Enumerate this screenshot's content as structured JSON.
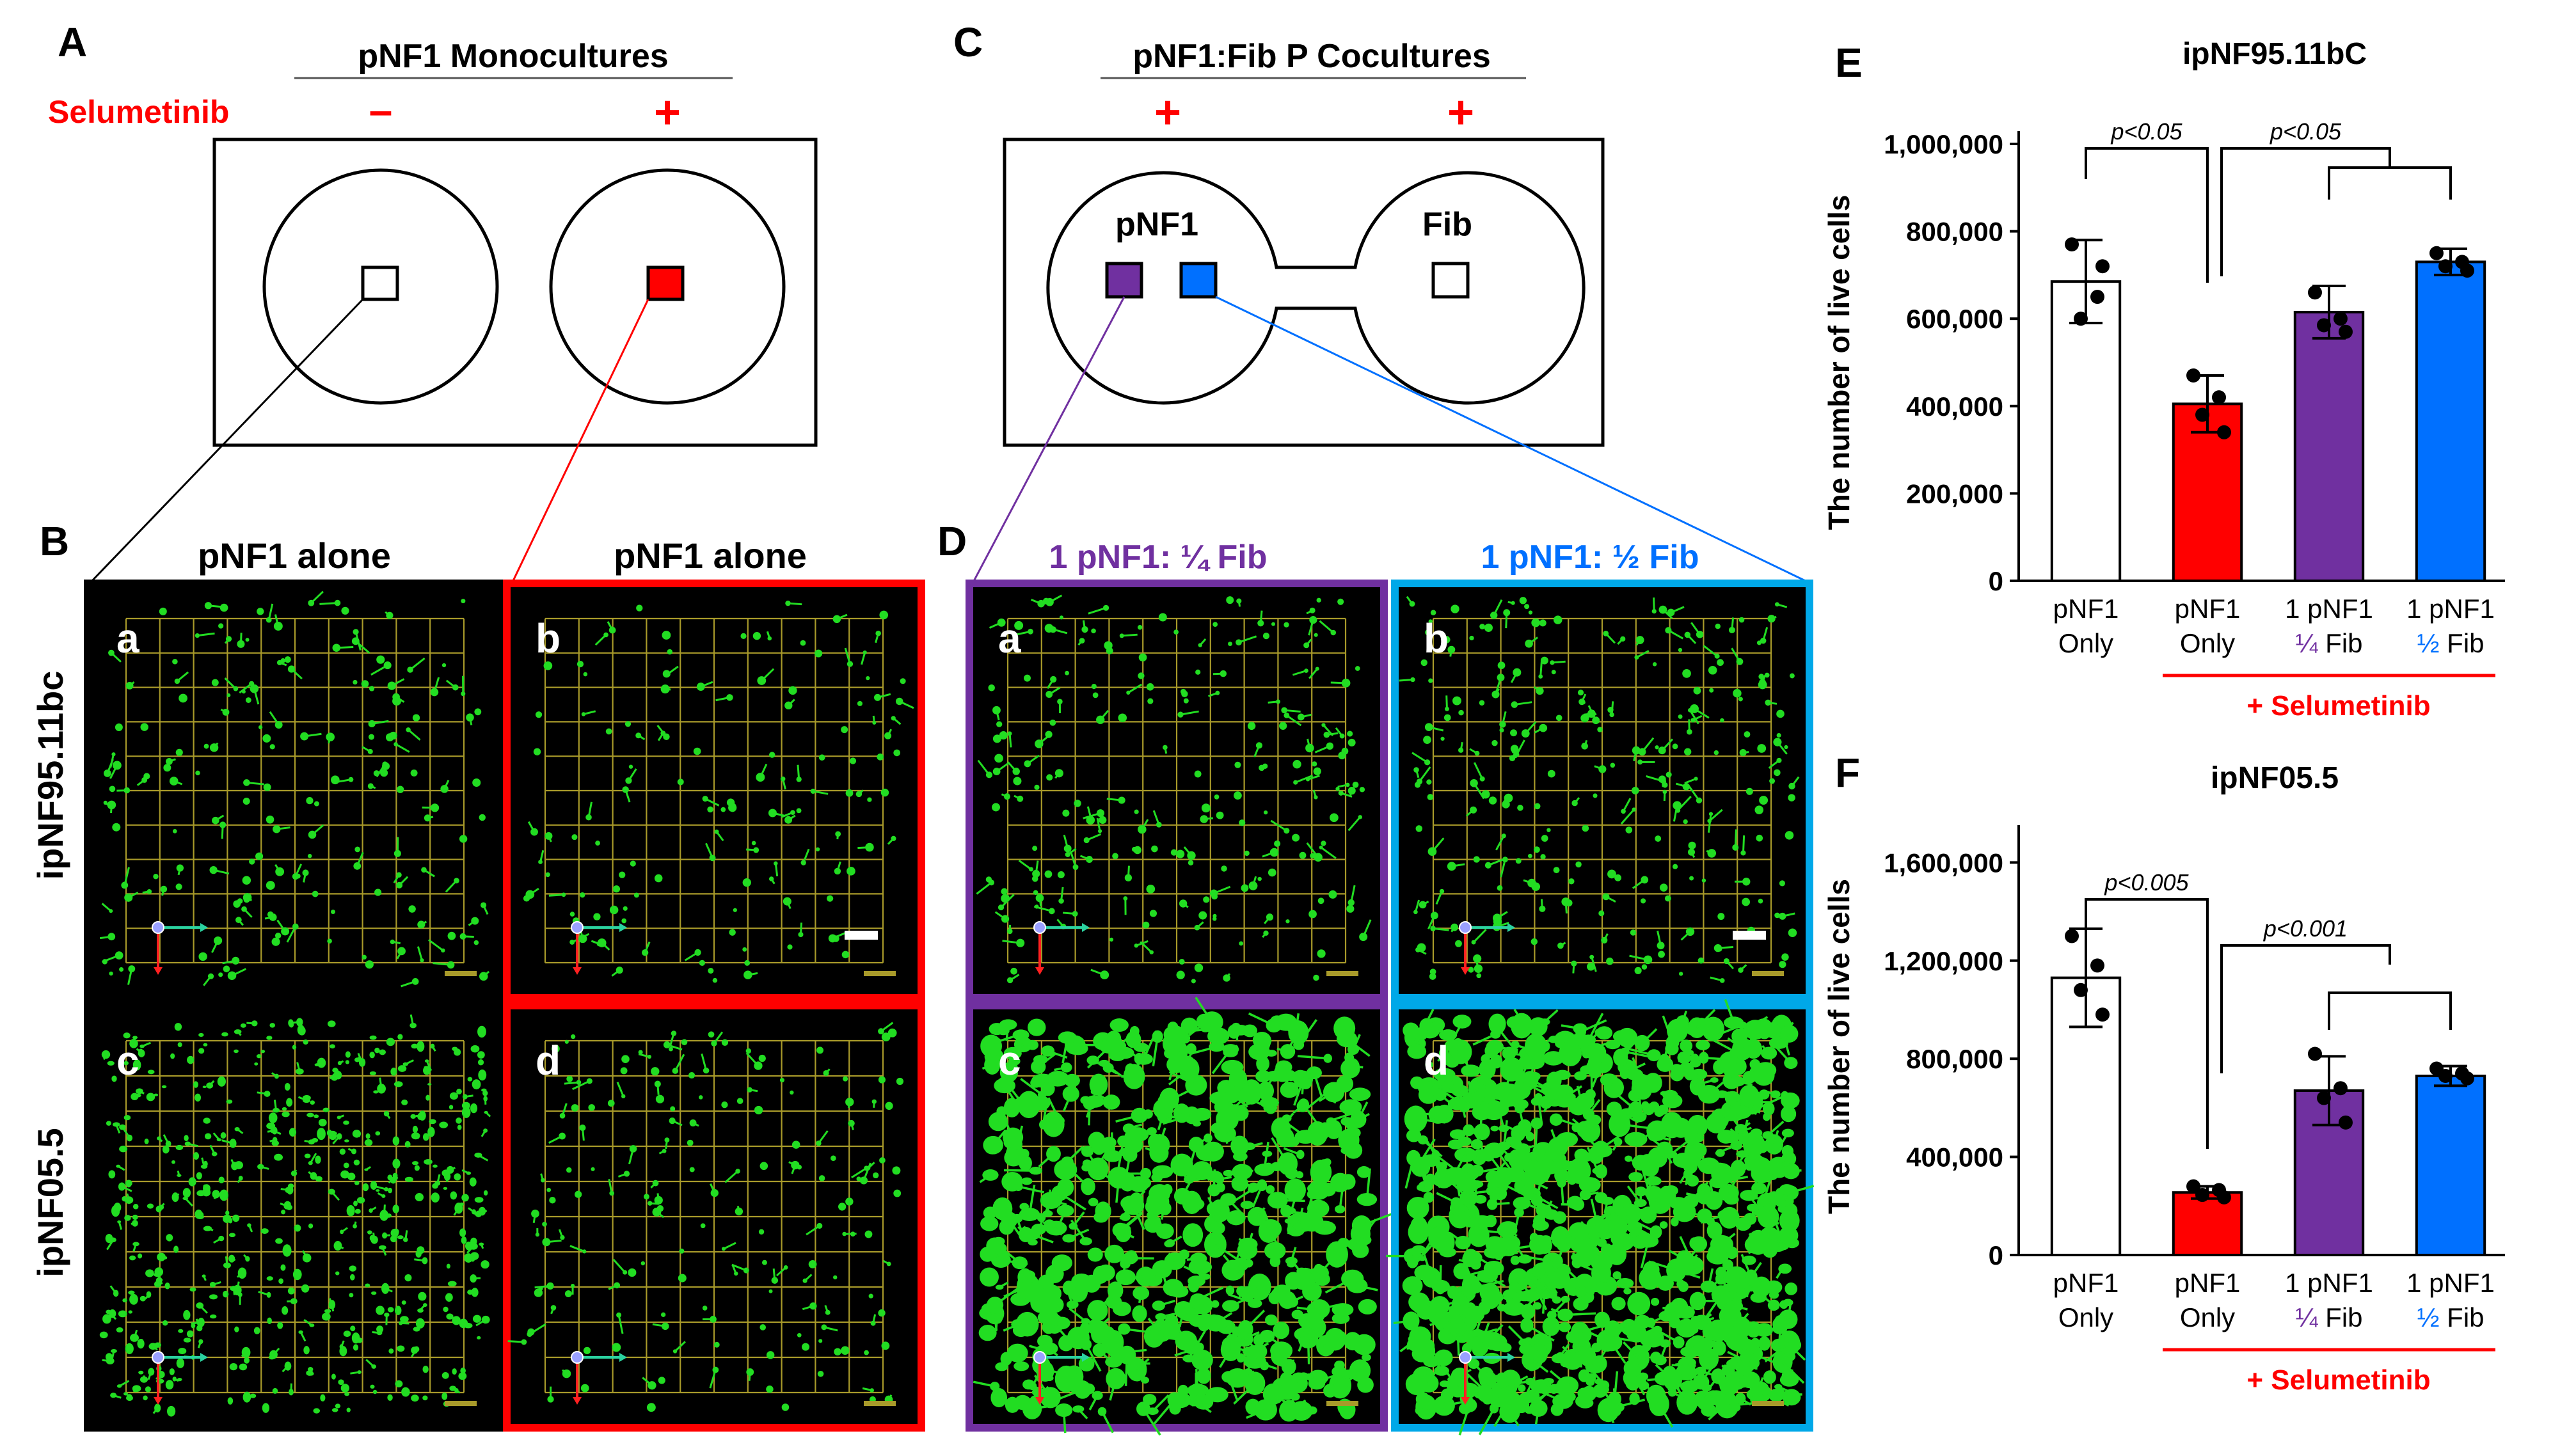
{
  "colors": {
    "red": "#ff0000",
    "purple": "#7030a0",
    "blue": "#0070ff",
    "cyan": "#00a8e8",
    "cell_green": "#22dd22",
    "grid_yellow": "#a89a2a",
    "black": "#000000"
  },
  "panel_a": {
    "letter": "A",
    "title": "pNF1 Monocultures",
    "selumetinib_label": "Selumetinib",
    "minus": "–",
    "plus": "+"
  },
  "panel_b": {
    "letter": "B",
    "col1_title": "pNF1 alone",
    "col2_title": "pNF1 alone",
    "row1_label": "ipNF95.11bc",
    "row2_label": "ipNF05.5",
    "sub_a": "a",
    "sub_b": "b",
    "sub_c": "c",
    "sub_d": "d"
  },
  "panel_c": {
    "letter": "C",
    "title": "pNF1:Fib P Cocultures",
    "plus_left": "+",
    "plus_right": "+",
    "well_left": "pNF1",
    "well_right": "Fib"
  },
  "panel_d": {
    "letter": "D",
    "col1_title": "1 pNF1: ¼ Fib",
    "col2_title": "1 pNF1: ½ Fib",
    "sub_a": "a",
    "sub_b": "b",
    "sub_c": "c",
    "sub_d": "d"
  },
  "chart_data": [
    {
      "panel": "E",
      "type": "bar",
      "title": "ipNF95.11bC",
      "ylabel": "The number of live cells",
      "ylim": [
        0,
        1000000
      ],
      "yticks": [
        "0",
        "200,000",
        "400,000",
        "600,000",
        "800,000",
        "1,000,000"
      ],
      "ytick_values": [
        0,
        200000,
        400000,
        600000,
        800000,
        1000000
      ],
      "categories": [
        {
          "line1": "pNF1",
          "line2": "Only",
          "line2_color": "#000000"
        },
        {
          "line1": "pNF1",
          "line2": "Only",
          "line2_color": "#000000"
        },
        {
          "line1": "1 pNF1",
          "line2a": "¼",
          "line2b": " Fib",
          "line2_color": "#7030a0"
        },
        {
          "line1": "1 pNF1",
          "line2a": "½",
          "line2b": " Fib",
          "line2_color": "#0070ff"
        }
      ],
      "values": [
        685000,
        405000,
        615000,
        730000
      ],
      "errors": [
        95000,
        65000,
        60000,
        30000
      ],
      "bar_colors": [
        "#ffffff",
        "#ff0000",
        "#7030a0",
        "#0070ff"
      ],
      "points": [
        [
          770000,
          650000,
          600000,
          720000
        ],
        [
          470000,
          420000,
          380000,
          340000
        ],
        [
          660000,
          600000,
          585000,
          570000
        ],
        [
          750000,
          730000,
          720000,
          710000
        ]
      ],
      "sig1": "p<0.05",
      "sig2": "p<0.05",
      "bracket_label": "+ Selumetinib"
    },
    {
      "panel": "F",
      "type": "bar",
      "title": "ipNF05.5",
      "ylabel": "The number of live cells",
      "ylim": [
        0,
        1700000
      ],
      "yticks": [
        "0",
        "400,000",
        "800,000",
        "1,200,000",
        "1,600,000"
      ],
      "ytick_values": [
        0,
        400000,
        800000,
        1200000,
        1600000
      ],
      "categories": [
        {
          "line1": "pNF1",
          "line2": "Only",
          "line2_color": "#000000"
        },
        {
          "line1": "pNF1",
          "line2": "Only",
          "line2_color": "#000000"
        },
        {
          "line1": "1 pNF1",
          "line2a": "¼",
          "line2b": " Fib",
          "line2_color": "#7030a0"
        },
        {
          "line1": "1 pNF1",
          "line2a": "½",
          "line2b": " Fib",
          "line2_color": "#0070ff"
        }
      ],
      "values": [
        1130000,
        255000,
        670000,
        730000
      ],
      "errors": [
        200000,
        25000,
        140000,
        40000
      ],
      "bar_colors": [
        "#ffffff",
        "#ff0000",
        "#7030a0",
        "#0070ff"
      ],
      "points": [
        [
          1300000,
          1180000,
          1080000,
          980000
        ],
        [
          280000,
          265000,
          245000,
          235000
        ],
        [
          820000,
          680000,
          640000,
          540000
        ],
        [
          760000,
          740000,
          730000,
          720000
        ]
      ],
      "sig1": "p<0.005",
      "sig2": "p<0.001",
      "bracket_label": "+ Selumetinib"
    }
  ]
}
